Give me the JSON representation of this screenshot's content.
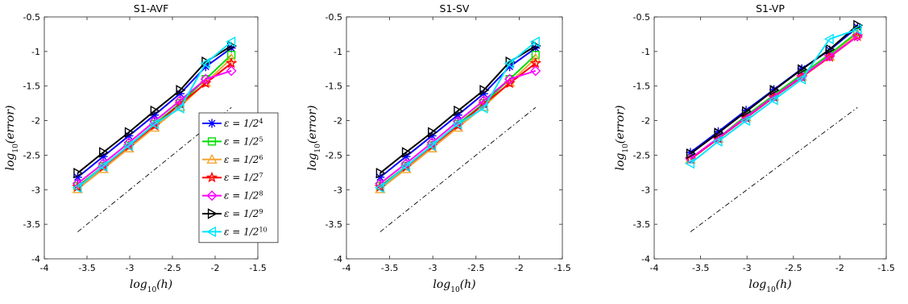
{
  "colors": {
    "eps_1_2_4": "#0000ff",
    "eps_1_2_5": "#00dd00",
    "eps_1_2_6": "#f4a430",
    "eps_1_2_7": "#ff0000",
    "eps_1_2_8": "#ff00ff",
    "eps_1_2_9": "#000000",
    "eps_1_2_10": "#00e5ff",
    "reference": "#000000"
  },
  "chart_data": [
    {
      "type": "line",
      "title": "S1-AVF",
      "xlabel": "log10(h)",
      "ylabel": "log10(error)",
      "xlim": [
        -4,
        -1.5
      ],
      "ylim": [
        -4,
        -0.5
      ],
      "xticks": [
        -4,
        -3.5,
        -3,
        -2.5,
        -2,
        -1.5
      ],
      "yticks": [
        -4,
        -3.5,
        -3,
        -2.5,
        -2,
        -1.5,
        -1,
        -0.5
      ],
      "xtick_labels": [
        "-4",
        "-3.5",
        "-3",
        "-2.5",
        "-2",
        "-1.5"
      ],
      "ytick_labels": [
        "-4",
        "-3.5",
        "-3",
        "-2.5",
        "-2",
        "-1.5",
        "-1",
        "-0.5"
      ],
      "grid": false,
      "legend_position": "bottom-right",
      "x": [
        -3.61,
        -3.31,
        -3.01,
        -2.71,
        -2.41,
        -2.11,
        -1.81
      ],
      "series": [
        {
          "name": "ε = 1/2^4",
          "marker": "asterisk",
          "color": "#0000ff",
          "values": [
            -2.82,
            -2.52,
            -2.22,
            -1.92,
            -1.61,
            -1.22,
            -0.95
          ]
        },
        {
          "name": "ε = 1/2^5",
          "marker": "square",
          "color": "#00dd00",
          "values": [
            -2.95,
            -2.66,
            -2.36,
            -2.05,
            -1.75,
            -1.4,
            -1.05
          ]
        },
        {
          "name": "ε = 1/2^6",
          "marker": "triangle-up",
          "color": "#f4a430",
          "values": [
            -2.99,
            -2.7,
            -2.4,
            -2.1,
            -1.8,
            -1.45,
            -1.1
          ]
        },
        {
          "name": "ε = 1/2^7",
          "marker": "star",
          "color": "#ff0000",
          "values": [
            -2.96,
            -2.67,
            -2.37,
            -2.07,
            -1.76,
            -1.46,
            -1.17
          ]
        },
        {
          "name": "ε = 1/2^8",
          "marker": "diamond",
          "color": "#ff00ff",
          "values": [
            -2.91,
            -2.62,
            -2.32,
            -2.01,
            -1.71,
            -1.4,
            -1.28
          ]
        },
        {
          "name": "ε = 1/2^9",
          "marker": "triangle-right",
          "color": "#000000",
          "values": [
            -2.76,
            -2.46,
            -2.17,
            -1.86,
            -1.56,
            -1.15,
            -0.92
          ]
        },
        {
          "name": "ε = 1/2^10",
          "marker": "triangle-left",
          "color": "#00e5ff",
          "values": [
            -2.97,
            -2.66,
            -2.36,
            -2.05,
            -1.82,
            -1.17,
            -0.86
          ]
        }
      ],
      "reference_line": {
        "style": "dash-dot",
        "color": "#000000",
        "x": [
          -3.61,
          -1.81
        ],
        "y": [
          -3.61,
          -1.81
        ]
      }
    },
    {
      "type": "line",
      "title": "S1-SV",
      "xlabel": "log10(h)",
      "ylabel": "log10(error)",
      "xlim": [
        -4,
        -1.5
      ],
      "ylim": [
        -4,
        -0.5
      ],
      "xticks": [
        -4,
        -3.5,
        -3,
        -2.5,
        -2,
        -1.5
      ],
      "yticks": [
        -4,
        -3.5,
        -3,
        -2.5,
        -2,
        -1.5,
        -1,
        -0.5
      ],
      "xtick_labels": [
        "-4",
        "-3.5",
        "-3",
        "-2.5",
        "-2",
        "-1.5"
      ],
      "ytick_labels": [
        "-4",
        "-3.5",
        "-3",
        "-2.5",
        "-2",
        "-1.5",
        "-1",
        "-0.5"
      ],
      "grid": false,
      "legend_position": "none",
      "x": [
        -3.61,
        -3.31,
        -3.01,
        -2.71,
        -2.41,
        -2.11,
        -1.81
      ],
      "series": [
        {
          "name": "ε = 1/2^4",
          "marker": "asterisk",
          "color": "#0000ff",
          "values": [
            -2.82,
            -2.52,
            -2.22,
            -1.92,
            -1.61,
            -1.22,
            -0.95
          ]
        },
        {
          "name": "ε = 1/2^5",
          "marker": "square",
          "color": "#00dd00",
          "values": [
            -2.95,
            -2.66,
            -2.36,
            -2.05,
            -1.75,
            -1.4,
            -1.05
          ]
        },
        {
          "name": "ε = 1/2^6",
          "marker": "triangle-up",
          "color": "#f4a430",
          "values": [
            -2.99,
            -2.7,
            -2.4,
            -2.1,
            -1.8,
            -1.45,
            -1.1
          ]
        },
        {
          "name": "ε = 1/2^7",
          "marker": "star",
          "color": "#ff0000",
          "values": [
            -2.96,
            -2.67,
            -2.37,
            -2.07,
            -1.76,
            -1.46,
            -1.17
          ]
        },
        {
          "name": "ε = 1/2^8",
          "marker": "diamond",
          "color": "#ff00ff",
          "values": [
            -2.91,
            -2.62,
            -2.32,
            -2.01,
            -1.71,
            -1.4,
            -1.28
          ]
        },
        {
          "name": "ε = 1/2^9",
          "marker": "triangle-right",
          "color": "#000000",
          "values": [
            -2.76,
            -2.46,
            -2.17,
            -1.86,
            -1.56,
            -1.15,
            -0.92
          ]
        },
        {
          "name": "ε = 1/2^10",
          "marker": "triangle-left",
          "color": "#00e5ff",
          "values": [
            -2.97,
            -2.66,
            -2.36,
            -2.05,
            -1.82,
            -1.17,
            -0.86
          ]
        }
      ],
      "reference_line": {
        "style": "dash-dot",
        "color": "#000000",
        "x": [
          -3.61,
          -1.81
        ],
        "y": [
          -3.61,
          -1.81
        ]
      }
    },
    {
      "type": "line",
      "title": "S1-VP",
      "xlabel": "log10(h)",
      "ylabel": "log10(error)",
      "xlim": [
        -4,
        -1.5
      ],
      "ylim": [
        -4,
        -0.5
      ],
      "xticks": [
        -4,
        -3.5,
        -3,
        -2.5,
        -2,
        -1.5
      ],
      "yticks": [
        -4,
        -3.5,
        -3,
        -2.5,
        -2,
        -1.5,
        -1,
        -0.5
      ],
      "xtick_labels": [
        "-4",
        "-3.5",
        "-3",
        "-2.5",
        "-2",
        "-1.5"
      ],
      "ytick_labels": [
        "-4",
        "-3.5",
        "-3",
        "-2.5",
        "-2",
        "-1.5",
        "-1",
        "-0.5"
      ],
      "grid": false,
      "legend_position": "none",
      "x": [
        -3.61,
        -3.31,
        -3.01,
        -2.71,
        -2.41,
        -2.11,
        -1.81
      ],
      "series": [
        {
          "name": "ε = 1/2^4",
          "marker": "asterisk",
          "color": "#0000ff",
          "values": [
            -2.46,
            -2.16,
            -1.85,
            -1.55,
            -1.25,
            -0.98,
            -0.65
          ]
        },
        {
          "name": "ε = 1/2^5",
          "marker": "square",
          "color": "#00dd00",
          "values": [
            -2.55,
            -2.25,
            -1.93,
            -1.63,
            -1.33,
            -1.04,
            -0.72
          ]
        },
        {
          "name": "ε = 1/2^6",
          "marker": "triangle-up",
          "color": "#f4a430",
          "values": [
            -2.56,
            -2.26,
            -1.95,
            -1.65,
            -1.36,
            -1.07,
            -0.75
          ]
        },
        {
          "name": "ε = 1/2^7",
          "marker": "star",
          "color": "#ff0000",
          "values": [
            -2.56,
            -2.26,
            -1.96,
            -1.66,
            -1.37,
            -1.08,
            -0.78
          ]
        },
        {
          "name": "ε = 1/2^8",
          "marker": "diamond",
          "color": "#ff00ff",
          "values": [
            -2.55,
            -2.25,
            -1.95,
            -1.65,
            -1.36,
            -1.07,
            -0.78
          ]
        },
        {
          "name": "ε = 1/2^9",
          "marker": "triangle-right",
          "color": "#000000",
          "values": [
            -2.48,
            -2.18,
            -1.87,
            -1.56,
            -1.26,
            -0.97,
            -0.62
          ]
        },
        {
          "name": "ε = 1/2^10",
          "marker": "triangle-left",
          "color": "#00e5ff",
          "values": [
            -2.62,
            -2.3,
            -2.0,
            -1.7,
            -1.4,
            -0.82,
            -0.68
          ]
        }
      ],
      "reference_line": {
        "style": "dash-dot",
        "color": "#000000",
        "x": [
          -3.61,
          -1.81
        ],
        "y": [
          -3.61,
          -1.81
        ]
      }
    }
  ]
}
